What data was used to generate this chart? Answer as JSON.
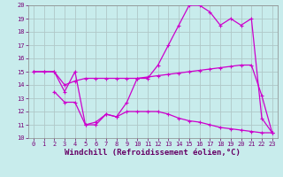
{
  "background_color": "#c8ecec",
  "grid_color": "#b0c8c8",
  "line_color": "#cc00cc",
  "xlabel": "Windchill (Refroidissement éolien,°C)",
  "xlabel_fontsize": 6.5,
  "xlim": [
    -0.5,
    23.5
  ],
  "ylim": [
    10,
    20
  ],
  "yticks": [
    10,
    11,
    12,
    13,
    14,
    15,
    16,
    17,
    18,
    19,
    20
  ],
  "xticks": [
    0,
    1,
    2,
    3,
    4,
    5,
    6,
    7,
    8,
    9,
    10,
    11,
    12,
    13,
    14,
    15,
    16,
    17,
    18,
    19,
    20,
    21,
    22,
    23
  ],
  "s1x": [
    0,
    1,
    2,
    3,
    4,
    5,
    6,
    7,
    8,
    9,
    10,
    11,
    12,
    13,
    14,
    15,
    16,
    17,
    18,
    19,
    20,
    21,
    22,
    23
  ],
  "s1y": [
    15,
    15,
    15,
    13.5,
    15,
    11,
    11,
    11.8,
    11.6,
    12.7,
    14.5,
    14.5,
    15.5,
    17.0,
    18.5,
    20.0,
    20.0,
    19.5,
    18.5,
    19.0,
    18.5,
    19.0,
    11.5,
    10.4
  ],
  "s2x": [
    0,
    1,
    2,
    3,
    4,
    5,
    6,
    7,
    8,
    9,
    10,
    11,
    12,
    13,
    14,
    15,
    16,
    17,
    18,
    19,
    20,
    21,
    22,
    23
  ],
  "s2y": [
    15,
    15,
    15,
    14,
    14.3,
    14.5,
    14.5,
    14.5,
    14.5,
    14.5,
    14.5,
    14.6,
    14.7,
    14.8,
    14.9,
    15.0,
    15.1,
    15.2,
    15.3,
    15.4,
    15.5,
    15.5,
    13.2,
    10.4
  ],
  "s3x": [
    2,
    3,
    4,
    5,
    6,
    7,
    8,
    9,
    10,
    11,
    12,
    13,
    14,
    15,
    16,
    17,
    18,
    19,
    20,
    21,
    22,
    23
  ],
  "s3y": [
    13.5,
    12.7,
    12.7,
    11.0,
    11.2,
    11.8,
    11.6,
    12.0,
    12.0,
    12.0,
    12.0,
    11.8,
    11.5,
    11.3,
    11.2,
    11.0,
    10.8,
    10.7,
    10.6,
    10.5,
    10.4,
    10.4
  ]
}
